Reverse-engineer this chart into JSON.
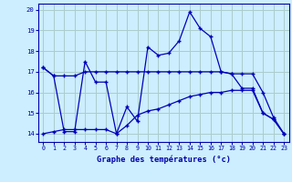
{
  "title": "Graphe des températures (°c)",
  "background_color": "#cceeff",
  "grid_color": "#aacccc",
  "line_color": "#0000bb",
  "ylim": [
    13.6,
    20.3
  ],
  "xlim": [
    -0.5,
    23.5
  ],
  "yticks": [
    14,
    15,
    16,
    17,
    18,
    19,
    20
  ],
  "xticks": [
    0,
    1,
    2,
    3,
    4,
    5,
    6,
    7,
    8,
    9,
    10,
    11,
    12,
    13,
    14,
    15,
    16,
    17,
    18,
    19,
    20,
    21,
    22,
    23
  ],
  "series1_x": [
    0,
    1,
    2,
    3,
    4,
    5,
    6,
    7,
    8,
    9,
    10,
    11,
    12,
    13,
    14,
    15,
    16,
    17,
    18,
    19,
    20,
    21,
    22,
    23
  ],
  "series1_y": [
    17.2,
    16.8,
    16.8,
    16.8,
    17.0,
    17.0,
    17.0,
    17.0,
    17.0,
    17.0,
    17.0,
    17.0,
    17.0,
    17.0,
    17.0,
    17.0,
    17.0,
    17.0,
    16.9,
    16.9,
    16.9,
    16.0,
    14.8,
    14.0
  ],
  "series2_x": [
    0,
    1,
    2,
    3,
    4,
    5,
    6,
    7,
    8,
    9,
    10,
    11,
    12,
    13,
    14,
    15,
    16,
    17,
    18,
    19,
    20,
    21,
    22,
    23
  ],
  "series2_y": [
    17.2,
    16.8,
    14.1,
    14.1,
    17.5,
    16.5,
    16.5,
    14.0,
    15.3,
    14.6,
    18.2,
    17.8,
    17.9,
    18.5,
    19.9,
    19.1,
    18.7,
    17.0,
    16.9,
    16.2,
    16.2,
    15.0,
    14.7,
    14.0
  ],
  "series3_x": [
    0,
    1,
    2,
    3,
    4,
    5,
    6,
    7,
    8,
    9,
    10,
    11,
    12,
    13,
    14,
    15,
    16,
    17,
    18,
    19,
    20,
    21,
    22,
    23
  ],
  "series3_y": [
    14.0,
    14.1,
    14.2,
    14.2,
    14.2,
    14.2,
    14.2,
    14.0,
    14.4,
    14.9,
    15.1,
    15.2,
    15.4,
    15.6,
    15.8,
    15.9,
    16.0,
    16.0,
    16.1,
    16.1,
    16.1,
    15.0,
    14.7,
    14.0
  ]
}
